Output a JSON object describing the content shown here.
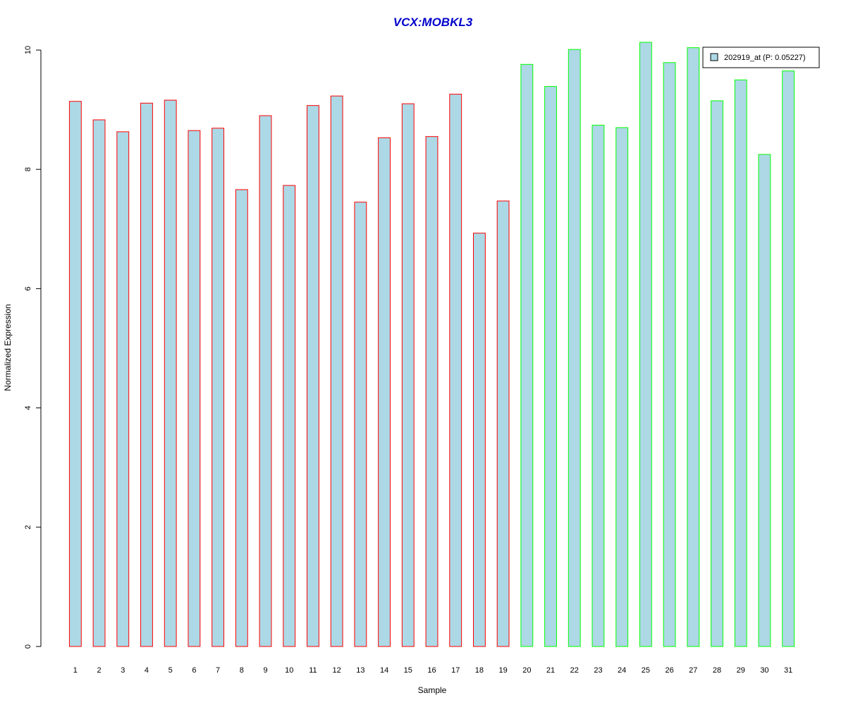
{
  "chart_data": {
    "type": "bar",
    "title": "VCX:MOBKL3",
    "title_color": "#0000CD",
    "xlabel": "Sample",
    "ylabel": "Normalized Expression",
    "ylim": [
      0,
      10
    ],
    "yticks": [
      0,
      2,
      4,
      6,
      8,
      10
    ],
    "grid": false,
    "legend_position": "top-right",
    "categories": [
      "1",
      "2",
      "3",
      "4",
      "5",
      "6",
      "7",
      "8",
      "9",
      "10",
      "11",
      "12",
      "13",
      "14",
      "15",
      "16",
      "17",
      "18",
      "19",
      "20",
      "21",
      "22",
      "23",
      "24",
      "25",
      "26",
      "27",
      "28",
      "29",
      "30",
      "31"
    ],
    "series": [
      {
        "name": "202919_at (P: 0.05227)",
        "fill": "#ADD8E6",
        "values": [
          9.14,
          8.83,
          8.63,
          9.11,
          9.16,
          8.65,
          8.69,
          7.66,
          8.9,
          7.73,
          9.07,
          9.23,
          7.45,
          8.53,
          9.1,
          8.55,
          9.26,
          6.93,
          7.47,
          9.76,
          9.39,
          10.01,
          8.74,
          8.7,
          10.13,
          9.79,
          10.04,
          9.15,
          9.5,
          8.25,
          9.65
        ],
        "border_colors": [
          "#FF0000",
          "#FF0000",
          "#FF0000",
          "#FF0000",
          "#FF0000",
          "#FF0000",
          "#FF0000",
          "#FF0000",
          "#FF0000",
          "#FF0000",
          "#FF0000",
          "#FF0000",
          "#FF0000",
          "#FF0000",
          "#FF0000",
          "#FF0000",
          "#FF0000",
          "#FF0000",
          "#FF0000",
          "#00FF00",
          "#00FF00",
          "#00FF00",
          "#00FF00",
          "#00FF00",
          "#00FF00",
          "#00FF00",
          "#00FF00",
          "#00FF00",
          "#00FF00",
          "#00FF00",
          "#00FF00"
        ]
      }
    ]
  }
}
